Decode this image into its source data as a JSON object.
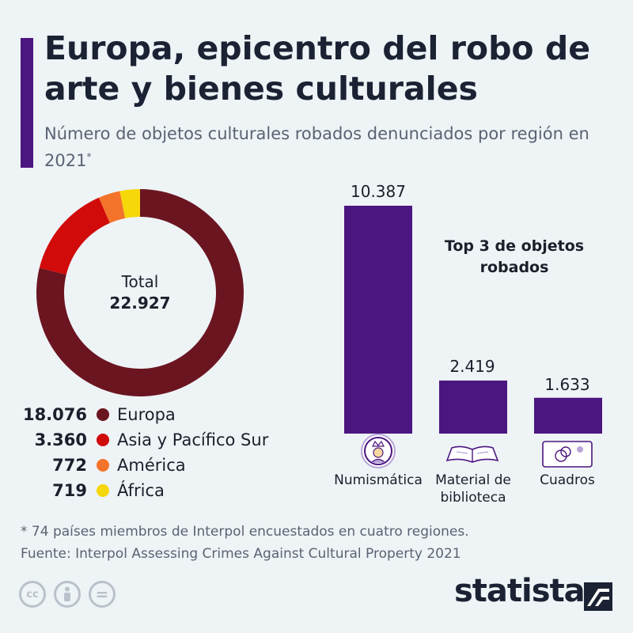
{
  "header": {
    "title": "Europa, epicentro del robo de arte y bienes culturales",
    "subtitle": "Número de objetos culturales robados denunciados por región en 2021",
    "subtitle_mark": "*",
    "accent_color": "#4b1680"
  },
  "chart_data": [
    {
      "type": "pie",
      "center_label": "Total",
      "center_value": "22.927",
      "total": 22927,
      "slices": [
        {
          "value_label": "18.076",
          "value": 18076,
          "name": "Europa",
          "color": "#6b1521"
        },
        {
          "value_label": "3.360",
          "value": 3360,
          "name": "Asia y Pacífico Sur",
          "color": "#d10a0a"
        },
        {
          "value_label": "772",
          "value": 772,
          "name": "América",
          "color": "#f4732a"
        },
        {
          "value_label": "719",
          "value": 719,
          "name": "África",
          "color": "#f5d70a"
        }
      ]
    },
    {
      "type": "bar",
      "title": "Top 3 de objetos robados",
      "categories": [
        "Numismática",
        "Material de biblioteca",
        "Cuadros"
      ],
      "values": [
        10387,
        2419,
        1633
      ],
      "value_labels": [
        "10.387",
        "2.419",
        "1.633"
      ],
      "icons": [
        "coin-icon",
        "book-icon",
        "painting-icon"
      ],
      "color": "#4b1680"
    }
  ],
  "footer": {
    "note": "* 74 países miembros de Interpol encuestados en cuatro regiones.",
    "source": "Fuente: Interpol Assessing Crimes Against Cultural Property 2021",
    "brand": "statista",
    "license_icons": [
      "cc-icon",
      "person-icon",
      "equals-icon"
    ],
    "license_text": [
      "cc",
      "",
      "="
    ]
  }
}
